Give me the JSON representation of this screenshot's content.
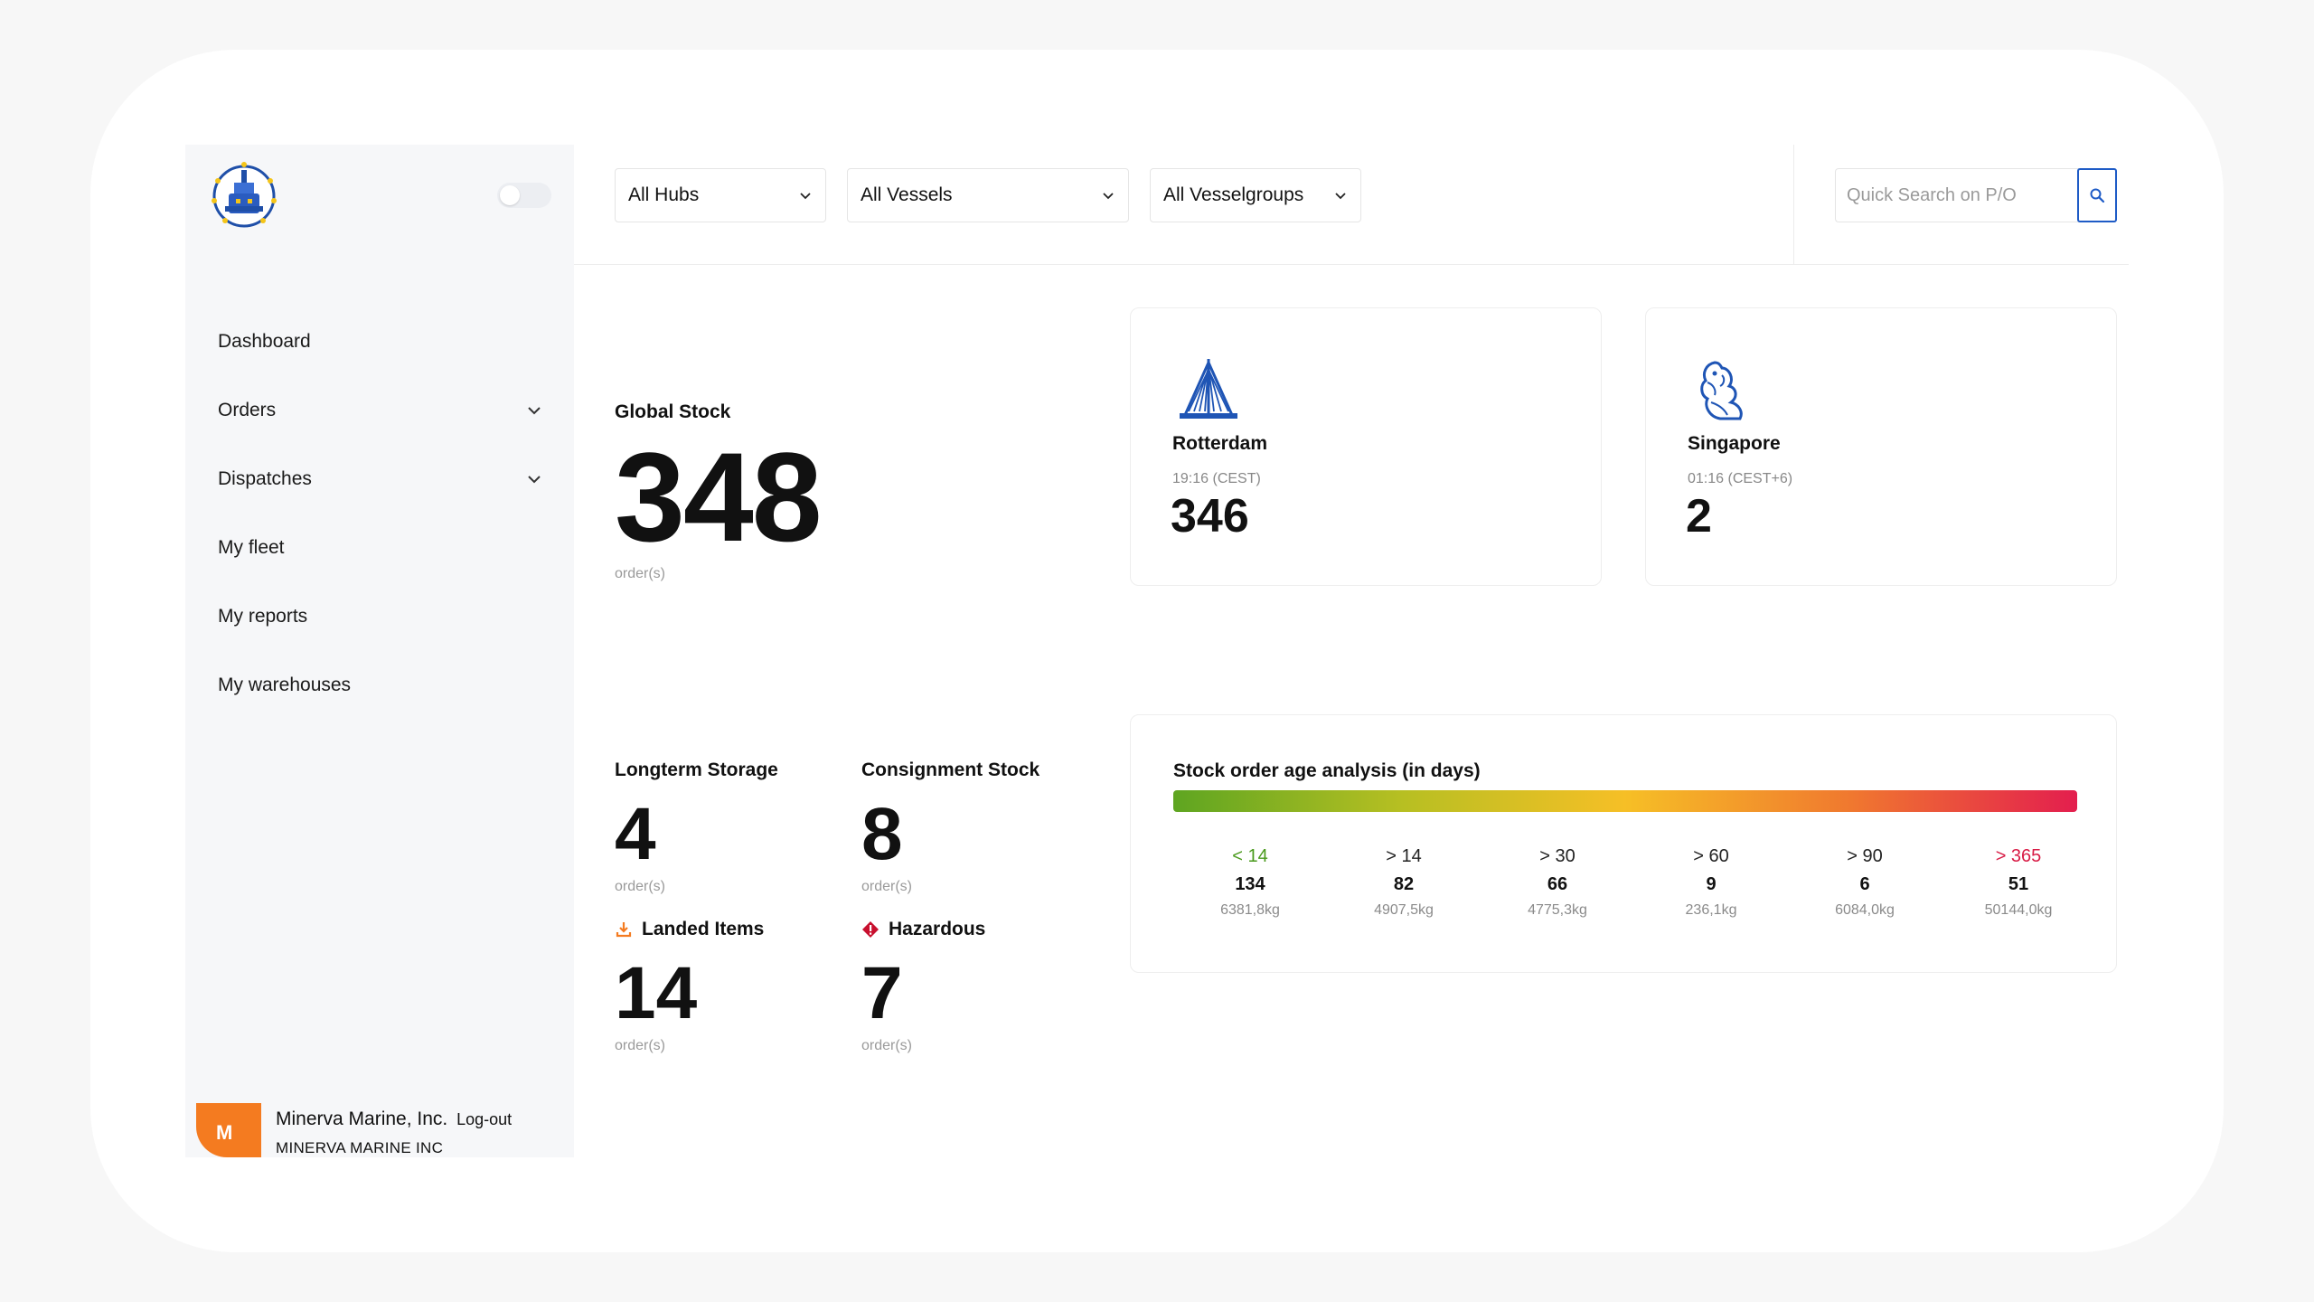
{
  "sidebar": {
    "logo_icon": "crest-logo-icon",
    "items": [
      {
        "label": "Dashboard",
        "expandable": false
      },
      {
        "label": "Orders",
        "expandable": true
      },
      {
        "label": "Dispatches",
        "expandable": true
      },
      {
        "label": "My fleet",
        "expandable": false
      },
      {
        "label": "My reports",
        "expandable": false
      },
      {
        "label": "My warehouses",
        "expandable": false
      }
    ],
    "user": {
      "badge": "M",
      "name": "Minerva Marine, Inc.",
      "logout": "Log-out",
      "org": "MINERVA MARINE INC"
    }
  },
  "filters": {
    "hubs": "All Hubs",
    "vessels": "All Vessels",
    "vesselgroups": "All Vesselgroups"
  },
  "search": {
    "placeholder": "Quick Search on P/O",
    "value": ""
  },
  "global_stock": {
    "label": "Global Stock",
    "value": "348",
    "unit": "order(s)"
  },
  "hubs": [
    {
      "name": "Rotterdam",
      "time": "19:16 (CEST)",
      "value": "346",
      "icon": "erasmus-bridge-icon"
    },
    {
      "name": "Singapore",
      "time": "01:16 (CEST+6)",
      "value": "2",
      "icon": "merlion-icon"
    }
  ],
  "stats": {
    "longterm": {
      "label": "Longterm Storage",
      "value": "4",
      "unit": "order(s)"
    },
    "consignment": {
      "label": "Consignment Stock",
      "value": "8",
      "unit": "order(s)"
    },
    "landed": {
      "label": "Landed Items",
      "value": "14",
      "unit": "order(s)",
      "icon": "download-tray-icon"
    },
    "hazardous": {
      "label": "Hazardous",
      "value": "7",
      "unit": "order(s)",
      "icon": "hazard-diamond-icon"
    }
  },
  "age_analysis": {
    "title": "Stock order age analysis (in days)",
    "buckets": [
      {
        "label": "< 14",
        "count": "134",
        "weight": "6381,8kg",
        "color": "#4a9a1c"
      },
      {
        "label": "> 14",
        "count": "82",
        "weight": "4907,5kg",
        "color": "#222222"
      },
      {
        "label": "> 30",
        "count": "66",
        "weight": "4775,3kg",
        "color": "#222222"
      },
      {
        "label": "> 60",
        "count": "9",
        "weight": "236,1kg",
        "color": "#222222"
      },
      {
        "label": "> 90",
        "count": "6",
        "weight": "6084,0kg",
        "color": "#222222"
      },
      {
        "label": "> 365",
        "count": "51",
        "weight": "50144,0kg",
        "color": "#d81b45"
      }
    ]
  },
  "colors": {
    "accent": "#1e5bc6",
    "brand_orange": "#f47b20",
    "hub_icon": "#1f55b5",
    "gradient": [
      "#5ea521",
      "#b6bf22",
      "#f6bf26",
      "#f0782f",
      "#e31e4e"
    ]
  }
}
